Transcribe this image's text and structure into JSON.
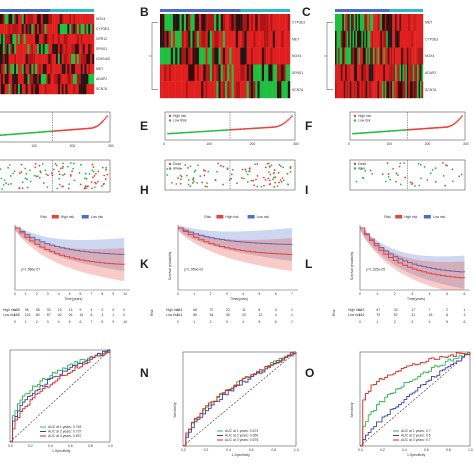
{
  "figure": {
    "panels": [
      {
        "id": "A",
        "label": "",
        "type": "heatmap",
        "genes": [
          "NOX4",
          "CYP3E3",
          "GPR12",
          "SPNS1",
          "CDKN1B",
          "MET",
          "ADAP2",
          "SCN7A"
        ]
      },
      {
        "id": "B",
        "label": "B",
        "type": "heatmap",
        "genes": [
          "CYP3E3",
          "MET",
          "NOX4",
          "SPNS1",
          "SCN7A"
        ]
      },
      {
        "id": "C",
        "label": "C",
        "type": "heatmap",
        "genes": [
          "MET",
          "CYP3E3",
          "NOX4",
          "ADAP2",
          "SCN7A"
        ]
      },
      {
        "id": "D",
        "label": "",
        "type": "risk-curve"
      },
      {
        "id": "E",
        "label": "E",
        "type": "risk-curve",
        "legend": [
          "High risk",
          "Low Risk"
        ]
      },
      {
        "id": "F",
        "label": "F",
        "type": "risk-curve",
        "legend": [
          "High risk",
          "Low risk"
        ]
      },
      {
        "id": "G",
        "label": "",
        "type": "survival-scatter"
      },
      {
        "id": "H",
        "label": "H",
        "type": "survival-scatter",
        "legend": [
          "Dead",
          "Alive"
        ]
      },
      {
        "id": "I",
        "label": "I",
        "type": "survival-scatter",
        "legend": [
          "Dead",
          "Alive"
        ]
      },
      {
        "id": "J",
        "label": "",
        "type": "km",
        "pvalue": "p=1.586e-07",
        "xlabel": "Time(years)",
        "risk_title": "Risk",
        "legend": [
          "High risk",
          "Low risk"
        ],
        "risk_rows": [
          {
            "name": "High risk",
            "counts": [
              "188",
              "96",
              "55",
              "33",
              "19",
              "13",
              "9",
              "4",
              "2",
              "0",
              "0"
            ]
          },
          {
            "name": "Low risk",
            "counts": [
              "188",
              "116",
              "80",
              "57",
              "40",
              "26",
              "15",
              "8",
              "3",
              "1",
              "0"
            ]
          }
        ],
        "ticks": [
          "0",
          "1",
          "2",
          "3",
          "4",
          "5",
          "6",
          "7",
          "8",
          "9",
          "10"
        ]
      },
      {
        "id": "K",
        "label": "K",
        "type": "km",
        "pvalue": "p=1.959e-02",
        "xlabel": "Time(years)",
        "ylabel": "Survival probability",
        "risk_title": "Risk",
        "legend": [
          "High risk",
          "Low risk"
        ],
        "risk_rows": [
          {
            "name": "High risk",
            "counts": [
              "115",
              "66",
              "37",
              "22",
              "11",
              "8",
              "3",
              "1"
            ]
          },
          {
            "name": "Low risk",
            "counts": [
              "114",
              "85",
              "54",
              "35",
              "20",
              "12",
              "4",
              "1"
            ]
          }
        ],
        "ticks": [
          "0",
          "1",
          "2",
          "3",
          "4",
          "5",
          "6",
          "7"
        ]
      },
      {
        "id": "L",
        "label": "L",
        "type": "km",
        "pvalue": "p=1.325e-05",
        "xlabel": "Time(years)",
        "ylabel": "Survival probability",
        "risk_title": "Risk",
        "legend": [
          "High risk",
          "Low risk"
        ],
        "risk_rows": [
          {
            "name": "High risk",
            "counts": [
              "115",
              "67",
              "32",
              "17",
              "7",
              "2",
              "1"
            ]
          },
          {
            "name": "Low risk",
            "counts": [
              "116",
              "79",
              "52",
              "31",
              "18",
              "8",
              "3"
            ]
          }
        ],
        "ticks": [
          "0",
          "1",
          "2",
          "3",
          "4",
          "5",
          "6"
        ]
      },
      {
        "id": "M",
        "label": "",
        "type": "roc",
        "xlabel": "1-Specificity",
        "auc": [
          "AUC at 1 years: 0.763",
          "AUC at 2 years: 0.737",
          "AUC at 3 years: 0.697"
        ]
      },
      {
        "id": "N",
        "label": "N",
        "type": "roc",
        "xlabel": "1-Specificity",
        "ylabel": "Sensitivity",
        "auc": [
          "AUC at 1 years: 0.674",
          "AUC at 2 years: 0.650",
          "AUC at 3 years: 0.675"
        ]
      },
      {
        "id": "O",
        "label": "O",
        "type": "roc",
        "xlabel": "1-Specificity",
        "ylabel": "Sensitivity",
        "auc": [
          "AUC at 1 years: 0.7",
          "AUC at 2 years: 0.5",
          "AUC at 3 years: 0.7"
        ]
      }
    ],
    "colors": {
      "high": "#e8433a",
      "low": "#4a6fc7",
      "green": "#2db84a",
      "blue": "#3a3fb0",
      "red": "#d8261f",
      "cyan": "#2fb8c8",
      "hm_red": "#e11f1f",
      "hm_dark": "#1a1a1a",
      "hm_green": "#1fbf3f"
    }
  }
}
